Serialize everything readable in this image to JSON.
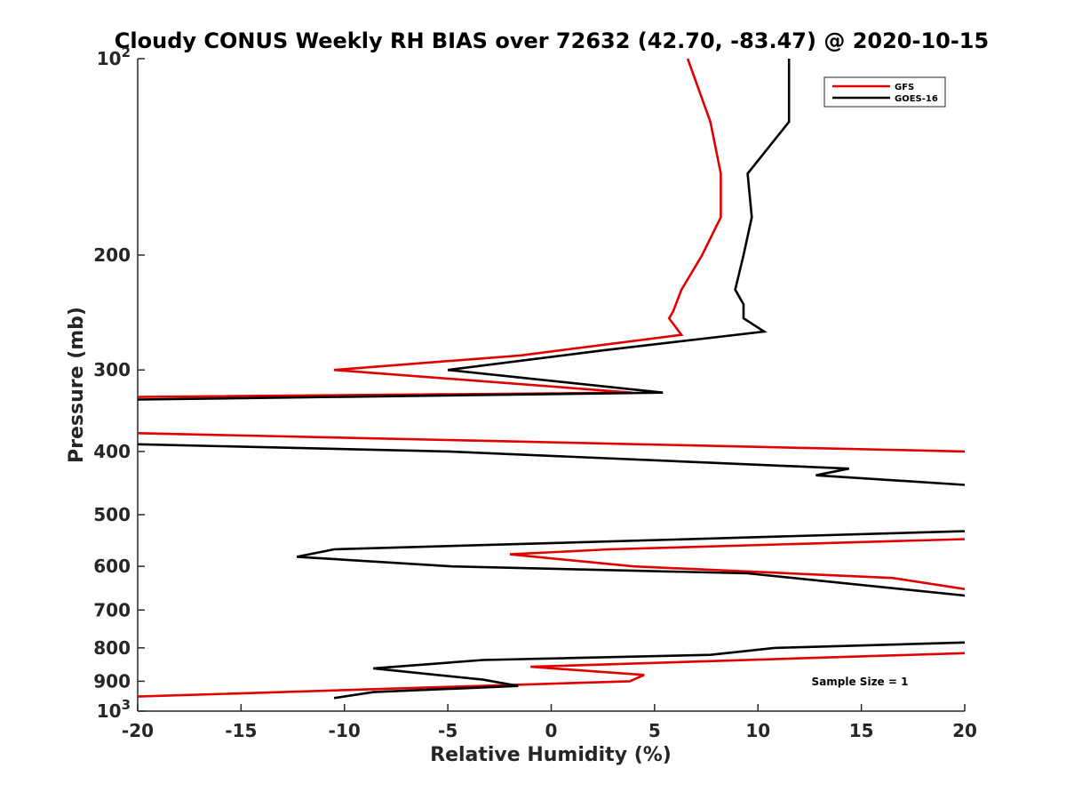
{
  "chart_data": {
    "type": "line",
    "title": "Cloudy CONUS Weekly RH BIAS over 72632 (42.70, -83.47) @ 2020-10-15",
    "xlabel": "Relative Humidity (%)",
    "ylabel": "Pressure (mb)",
    "xlim": [
      -20,
      20
    ],
    "ylim": [
      100,
      1000
    ],
    "yscale": "log",
    "y_reversed": true,
    "grid": false,
    "legend_position": "top-right",
    "x_ticks": [
      {
        "value": -20,
        "label": "-20"
      },
      {
        "value": -15,
        "label": "-15"
      },
      {
        "value": -10,
        "label": "-10"
      },
      {
        "value": -5,
        "label": "-5"
      },
      {
        "value": 0,
        "label": "0"
      },
      {
        "value": 5,
        "label": "5"
      },
      {
        "value": 10,
        "label": "10"
      },
      {
        "value": 15,
        "label": "15"
      },
      {
        "value": 20,
        "label": "20"
      }
    ],
    "y_ticks": [
      {
        "value": 100,
        "base": "10",
        "exp": "2"
      },
      {
        "value": 200,
        "label": "200"
      },
      {
        "value": 300,
        "label": "300"
      },
      {
        "value": 400,
        "label": "400"
      },
      {
        "value": 500,
        "label": "500"
      },
      {
        "value": 600,
        "label": "600"
      },
      {
        "value": 700,
        "label": "700"
      },
      {
        "value": 800,
        "label": "800"
      },
      {
        "value": 900,
        "label": "900"
      },
      {
        "value": 1000,
        "base": "10",
        "exp": "3"
      }
    ],
    "annotation": "Sample Size = 1",
    "series": [
      {
        "name": "GFS",
        "color": "#e00000",
        "points": [
          [
            6.6,
            100
          ],
          [
            7.7,
            125
          ],
          [
            8.2,
            150
          ],
          [
            8.2,
            175
          ],
          [
            7.3,
            200
          ],
          [
            6.3,
            226
          ],
          [
            5.9,
            244
          ],
          [
            5.7,
            250
          ],
          [
            6.3,
            265
          ],
          [
            -1.5,
            285
          ],
          [
            -10.5,
            300
          ],
          [
            3.9,
            325
          ],
          [
            -20,
            330
          ],
          [
            null,
            null
          ],
          [
            -20,
            375
          ],
          [
            20,
            400
          ],
          [
            null,
            null
          ],
          [
            20,
            545
          ],
          [
            2.8,
            565
          ],
          [
            -2.0,
            575
          ],
          [
            4.0,
            600
          ],
          [
            16.5,
            625
          ],
          [
            20,
            650
          ],
          [
            null,
            null
          ],
          [
            20,
            815
          ],
          [
            -1.0,
            855
          ],
          [
            4.5,
            880
          ],
          [
            3.8,
            900
          ],
          [
            -20,
            950
          ]
        ]
      },
      {
        "name": "GOES-16",
        "color": "#000000",
        "points": [
          [
            11.5,
            100
          ],
          [
            11.5,
            125
          ],
          [
            9.5,
            150
          ],
          [
            9.7,
            175
          ],
          [
            9.3,
            200
          ],
          [
            8.9,
            226
          ],
          [
            9.3,
            238
          ],
          [
            9.3,
            250
          ],
          [
            10.3,
            262
          ],
          [
            2.5,
            280
          ],
          [
            -5.0,
            300
          ],
          [
            5.4,
            325
          ],
          [
            -20,
            333
          ],
          [
            null,
            null
          ],
          [
            -20,
            390
          ],
          [
            -5.0,
            400
          ],
          [
            14.4,
            425
          ],
          [
            12.8,
            435
          ],
          [
            20,
            450
          ],
          [
            null,
            null
          ],
          [
            20,
            530
          ],
          [
            -10.5,
            565
          ],
          [
            -12.3,
            580
          ],
          [
            -4.8,
            600
          ],
          [
            9.5,
            615
          ],
          [
            20,
            665
          ],
          [
            null,
            null
          ],
          [
            20,
            785
          ],
          [
            10.8,
            800
          ],
          [
            7.7,
            820
          ],
          [
            -3.3,
            835
          ],
          [
            -8.6,
            860
          ],
          [
            -3.3,
            895
          ],
          [
            -1.6,
            915
          ],
          [
            -8.6,
            935
          ],
          [
            -10.5,
            955
          ]
        ]
      }
    ]
  }
}
